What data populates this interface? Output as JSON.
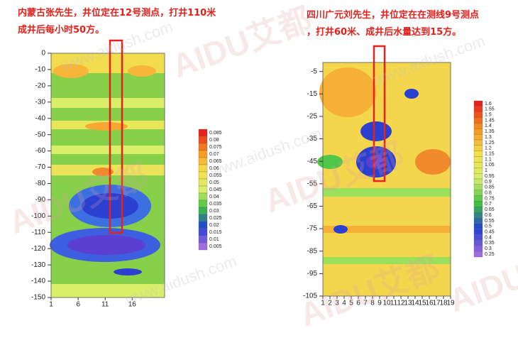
{
  "watermark": [
    "AIDU艾都",
    "www.aidush.com"
  ],
  "chart_data": [
    {
      "type": "contour",
      "title_lines": [
        "内蒙古张先生，井位定在12号测点，打井110米",
        "成井后每小时50方。"
      ],
      "xlim": [
        1,
        22
      ],
      "xticks": [
        1,
        6,
        11,
        16
      ],
      "ylim": [
        -150,
        0
      ],
      "yticks": [
        0,
        -10,
        -20,
        -30,
        -40,
        -50,
        -60,
        -70,
        -80,
        -90,
        -100,
        -110,
        -120,
        -130,
        -140,
        -150
      ],
      "colormap": [
        "#e8211c",
        "#f7941d",
        "#f5e04a",
        "#d7ef6a",
        "#3fbf3f",
        "#1f3fd9",
        "#a36be0"
      ],
      "colorbar_ticks": [
        0.085,
        0.08,
        0.075,
        0.07,
        0.065,
        0.06,
        0.055,
        0.05,
        0.045,
        0.04,
        0.035,
        0.03,
        0.025,
        0.02,
        0.015,
        0.01,
        0.005
      ]
    },
    {
      "type": "contour",
      "title_lines": [
        "四川广元刘先生，井位定在在测线9号测点",
        "，打井60米、成井后水量达到15方。"
      ],
      "xlim": [
        1,
        19
      ],
      "xticks": [
        1,
        2,
        3,
        4,
        5,
        6,
        7,
        8,
        9,
        10,
        11,
        12,
        13,
        14,
        15,
        16,
        17,
        18,
        19
      ],
      "ylim": [
        -105,
        -1
      ],
      "yticks": [
        -5,
        -15,
        -25,
        -35,
        -45,
        -55,
        -65,
        -75,
        -85,
        -95,
        -105
      ],
      "colormap": [
        "#e8211c",
        "#f7941d",
        "#f5e04a",
        "#d7ef6a",
        "#3fbf3f",
        "#1f3fd9",
        "#a36be0"
      ],
      "colorbar_ticks": [
        1.6,
        1.55,
        1.5,
        1.45,
        1.4,
        1.35,
        1.3,
        1.25,
        1.2,
        1.15,
        1.1,
        1.05,
        1,
        0.95,
        0.9,
        0.85,
        0.8,
        0.75,
        0.7,
        0.65,
        0.6,
        0.55,
        0.5,
        0.45,
        0.4,
        0.35,
        0.3,
        0.25
      ]
    }
  ]
}
